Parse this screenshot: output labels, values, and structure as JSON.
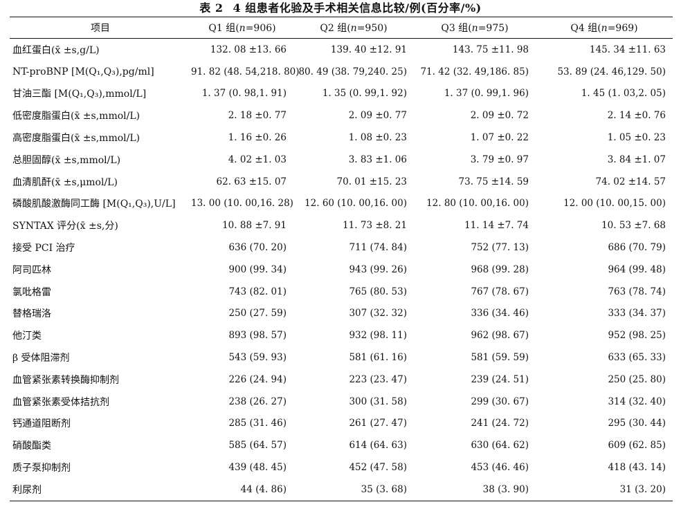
{
  "caption": {
    "number": "表 2",
    "title": "4 组患者化验及手术相关信息比较/例(百分率/%)"
  },
  "header": {
    "item": "项目",
    "groups": [
      {
        "label": "Q1 组",
        "n_symbol": "n",
        "n_text": "=906"
      },
      {
        "label": "Q2 组",
        "n_symbol": "n",
        "n_text": "=950"
      },
      {
        "label": "Q3 组",
        "n_symbol": "n",
        "n_text": "=975"
      },
      {
        "label": "Q4 组",
        "n_symbol": "n",
        "n_text": "=969"
      }
    ]
  },
  "rows": [
    {
      "label": "血红蛋白(x̄ ±s,g/L)",
      "values": [
        "132. 08 ±13. 66",
        "139. 40 ±12. 91",
        "143. 75 ±11. 98",
        "145. 34 ±11. 63"
      ]
    },
    {
      "label": "NT-proBNP [M(Q₁,Q₃),pg/ml]",
      "values": [
        "91. 82 (48. 54,218. 80)",
        "80. 49 (38. 79,240. 25)",
        "71. 42 (32. 49,186. 85)",
        "53. 89 (24. 46,129. 50)"
      ]
    },
    {
      "label": "甘油三酯 [M(Q₁,Q₃),mmol/L]",
      "values": [
        "1. 37 (0. 98,1. 91)",
        "1. 35 (0. 99,1. 92)",
        "1. 37 (0. 99,1. 96)",
        "1. 45 (1. 03,2. 05)"
      ]
    },
    {
      "label": "低密度脂蛋白(x̄ ±s,mmol/L)",
      "values": [
        "2. 18 ±0. 77",
        "2. 09 ±0. 77",
        "2. 09 ±0. 72",
        "2. 14 ±0. 76"
      ]
    },
    {
      "label": "高密度脂蛋白(x̄ ±s,mmol/L)",
      "values": [
        "1. 16 ±0. 26",
        "1. 08 ±0. 23",
        "1. 07 ±0. 22",
        "1. 05 ±0. 23"
      ]
    },
    {
      "label": "总胆固醇(x̄ ±s,mmol/L)",
      "values": [
        "4. 02 ±1. 03",
        "3. 83 ±1. 06",
        "3. 79 ±0. 97",
        "3. 84 ±1. 07"
      ]
    },
    {
      "label": "血清肌酐(x̄ ±s,μmol/L)",
      "values": [
        "62. 63 ±15. 07",
        "70. 01 ±15. 23",
        "73. 75 ±14. 59",
        "74. 02 ±14. 57"
      ]
    },
    {
      "label": "磷酸肌酸激酶同工酶 [M(Q₁,Q₃),U/L]",
      "values": [
        "13. 00 (10. 00,16. 28)",
        "12. 60 (10. 00,16. 00)",
        "12. 80 (10. 00,16. 00)",
        "12. 00 (10. 00,15. 00)"
      ]
    },
    {
      "label": "SYNTAX 评分(x̄ ±s,分)",
      "values": [
        "10. 88 ±7. 91",
        "11. 73 ±8. 21",
        "11. 14 ±7. 74",
        "10. 53 ±7. 68"
      ]
    },
    {
      "label": "接受 PCI 治疗",
      "values": [
        "636 (70. 20)",
        "711 (74. 84)",
        "752 (77. 13)",
        "686 (70. 79)"
      ]
    },
    {
      "label": "阿司匹林",
      "values": [
        "900 (99. 34)",
        "943 (99. 26)",
        "968 (99. 28)",
        "964 (99. 48)"
      ]
    },
    {
      "label": "氯吡格雷",
      "values": [
        "743 (82. 01)",
        "765 (80. 53)",
        "767 (78. 67)",
        "763 (78. 74)"
      ]
    },
    {
      "label": "替格瑞洛",
      "values": [
        "250 (27. 59)",
        "307 (32. 32)",
        "336 (34. 46)",
        "333 (34. 37)"
      ]
    },
    {
      "label": "他汀类",
      "values": [
        "893 (98. 57)",
        "932 (98. 11)",
        "962 (98. 67)",
        "952 (98. 25)"
      ]
    },
    {
      "label": "β 受体阻滞剂",
      "values": [
        "543 (59. 93)",
        "581 (61. 16)",
        "581 (59. 59)",
        "633 (65. 33)"
      ]
    },
    {
      "label": "血管紧张素转换酶抑制剂",
      "values": [
        "226 (24. 94)",
        "223 (23. 47)",
        "239 (24. 51)",
        "250 (25. 80)"
      ]
    },
    {
      "label": "血管紧张素受体拮抗剂",
      "values": [
        "238 (26. 27)",
        "300 (31. 58)",
        "299 (30. 67)",
        "314 (32. 40)"
      ]
    },
    {
      "label": "钙通道阻断剂",
      "values": [
        "285 (31. 46)",
        "261 (27. 47)",
        "241 (24. 72)",
        "295 (30. 44)"
      ]
    },
    {
      "label": "硝酸酯类",
      "values": [
        "585 (64. 57)",
        "614 (64. 63)",
        "630 (64. 62)",
        "609 (62. 85)"
      ]
    },
    {
      "label": "质子泵抑制剂",
      "values": [
        "439 (48. 45)",
        "452 (47. 58)",
        "453 (46. 46)",
        "418 (43. 14)"
      ]
    },
    {
      "label": "利尿剂",
      "values": [
        "44 (4. 86)",
        "35 (3. 68)",
        "38 (3. 90)",
        "31 (3. 20)"
      ]
    }
  ]
}
